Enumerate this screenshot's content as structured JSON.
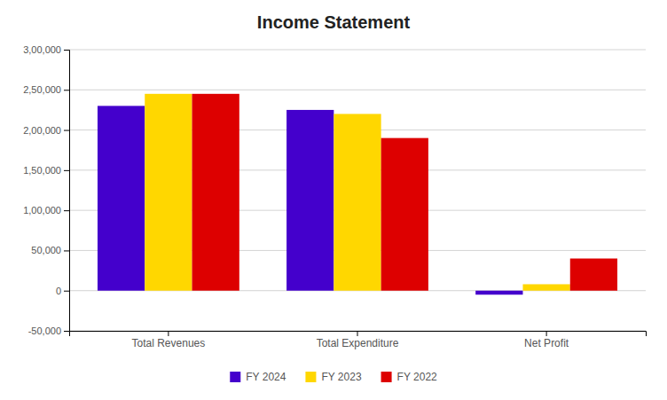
{
  "chart_data": {
    "type": "bar",
    "title": "Income Statement",
    "categories": [
      "Total Revenues",
      "Total Expenditure",
      "Net Profit"
    ],
    "series": [
      {
        "name": "FY 2024",
        "color": "#4400CC",
        "values": [
          230000,
          225000,
          -5000
        ]
      },
      {
        "name": "FY 2023",
        "color": "#FFD700",
        "values": [
          245000,
          220000,
          8000
        ]
      },
      {
        "name": "FY 2022",
        "color": "#DD0000",
        "values": [
          245000,
          190000,
          40000
        ]
      }
    ],
    "ylim": [
      -50000,
      300000
    ],
    "yticks": [
      {
        "value": -50000,
        "label": "-50,000"
      },
      0,
      {
        "value": 50000,
        "label": "50,000"
      },
      {
        "value": 100000,
        "label": "1,00,000"
      },
      {
        "value": 150000,
        "label": "1,50,000"
      },
      {
        "value": 200000,
        "label": "2,00,000"
      },
      {
        "value": 250000,
        "label": "2,50,000"
      },
      {
        "value": 300000,
        "label": "3,00,000"
      }
    ],
    "grid": true,
    "legend": "bottom"
  }
}
